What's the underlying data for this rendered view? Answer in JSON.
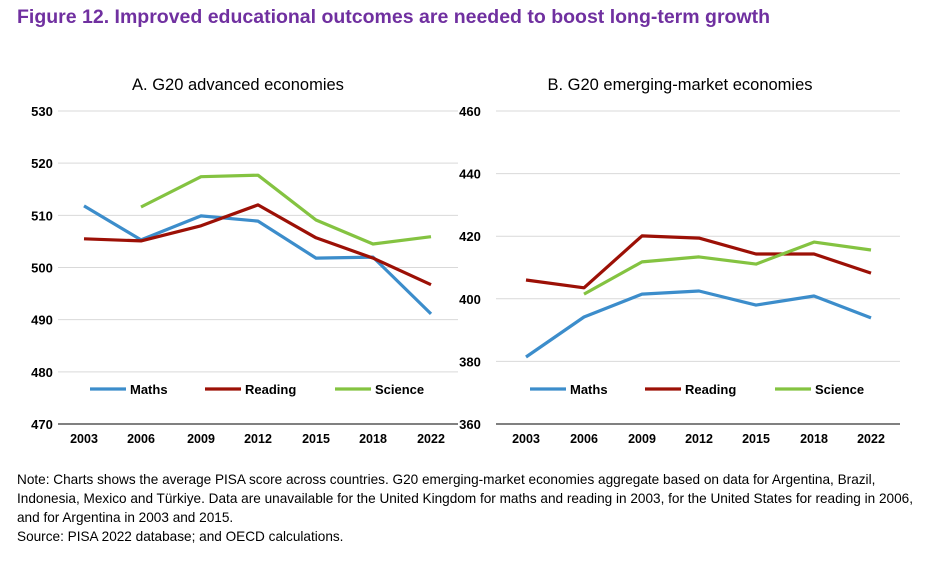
{
  "title": "Figure 12. Improved educational outcomes are needed to boost long-term growth",
  "note": "Note: Charts shows the average PISA score across countries. G20 emerging-market economies aggregate based on data for Argentina, Brazil, Indonesia, Mexico and Türkiye. Data are unavailable for the United Kingdom for maths and reading in 2003, for the United States for reading in 2006, and for Argentina in 2003 and 2015.",
  "source": "Source: PISA 2022 database; and OECD calculations.",
  "colors": {
    "title": "#7030a0",
    "Maths": "#3c8dcb",
    "Reading": "#9c1006",
    "Science": "#84c341",
    "grid": "#d9d9d9"
  },
  "chart_data": [
    {
      "type": "line",
      "title": "A. G20 advanced economies",
      "categories": [
        "2003",
        "2006",
        "2009",
        "2012",
        "2015",
        "2018",
        "2022"
      ],
      "ylim": [
        470,
        530
      ],
      "yticks": [
        470,
        480,
        490,
        500,
        510,
        520,
        530
      ],
      "grid": true,
      "legend": "bottom",
      "series": [
        {
          "name": "Maths",
          "values": [
            511.8,
            505.3,
            509.9,
            508.9,
            501.8,
            502.0,
            491.1
          ]
        },
        {
          "name": "Reading",
          "values": [
            505.5,
            505.1,
            508.0,
            512.0,
            505.7,
            501.8,
            496.7
          ]
        },
        {
          "name": "Science",
          "values": [
            null,
            511.6,
            517.4,
            517.7,
            509.1,
            504.5,
            505.9
          ]
        }
      ]
    },
    {
      "type": "line",
      "title": "B. G20 emerging-market economies",
      "categories": [
        "2003",
        "2006",
        "2009",
        "2012",
        "2015",
        "2018",
        "2022"
      ],
      "ylim": [
        360,
        460
      ],
      "yticks": [
        360,
        380,
        400,
        420,
        440,
        460
      ],
      "grid": true,
      "legend": "bottom",
      "series": [
        {
          "name": "Maths",
          "values": [
            381.4,
            394.2,
            401.5,
            402.5,
            398.0,
            400.9,
            393.9
          ]
        },
        {
          "name": "Reading",
          "values": [
            406.0,
            403.5,
            420.1,
            419.4,
            414.3,
            414.3,
            408.2
          ]
        },
        {
          "name": "Science",
          "values": [
            null,
            401.5,
            411.8,
            413.4,
            411.1,
            418.1,
            415.6
          ]
        }
      ]
    }
  ]
}
